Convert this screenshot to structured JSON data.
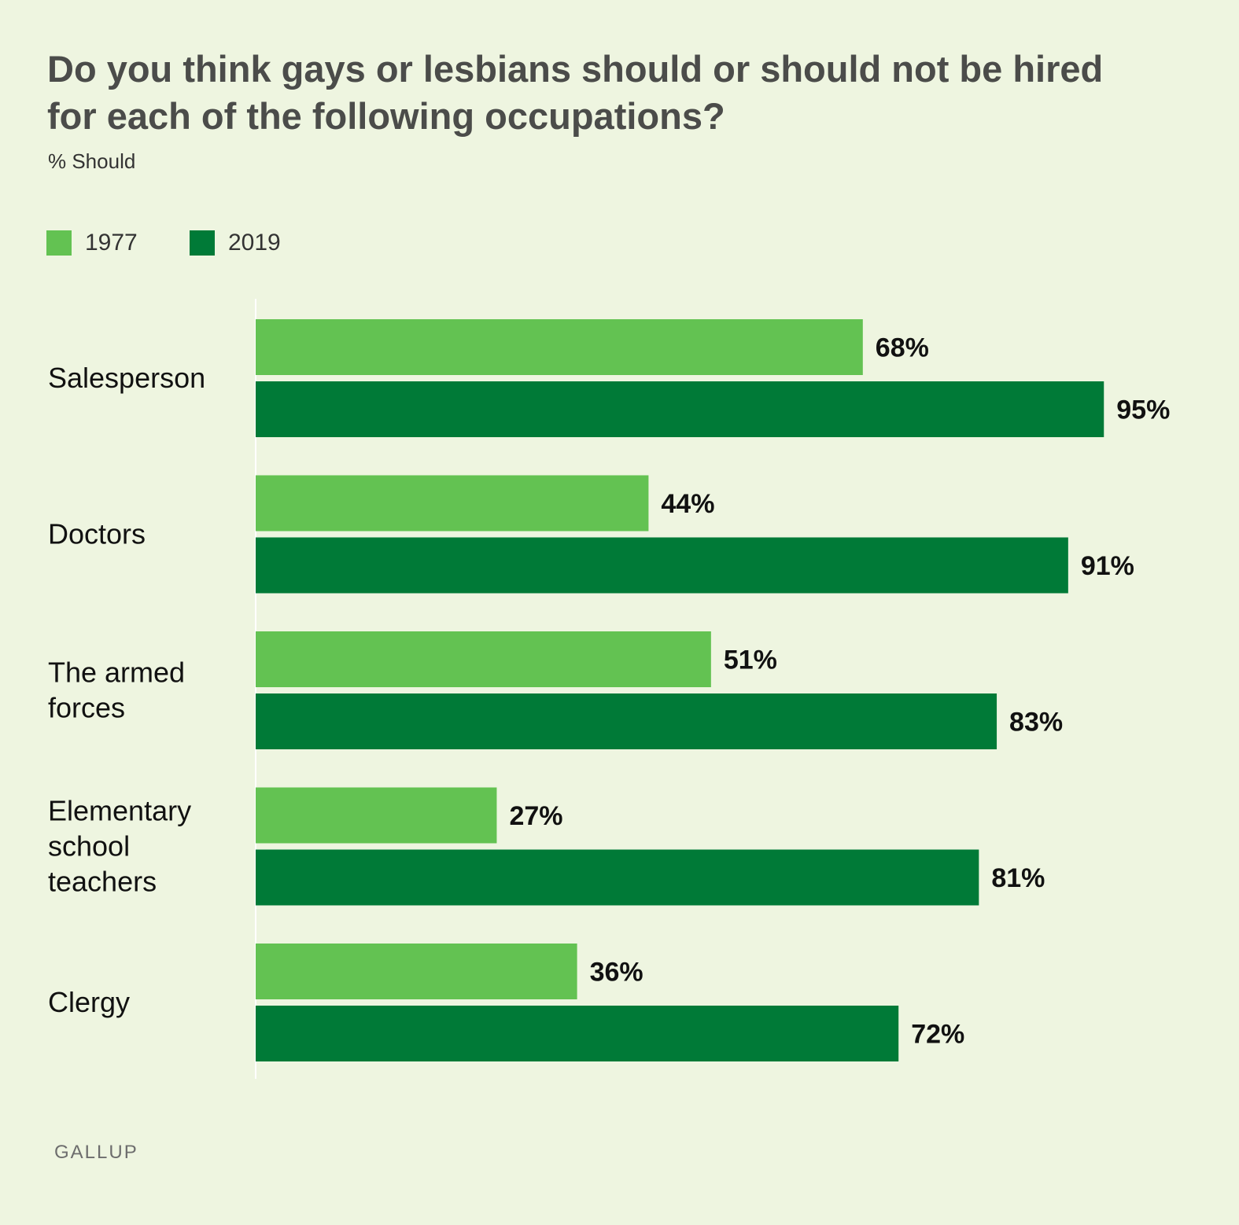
{
  "title": "Do you think gays or lesbians should or should not be hired for each of the following occupations?",
  "subtitle": "% Should",
  "colors": {
    "y1977": "#63c252",
    "y2019": "#007a37",
    "background": "#eef5e0"
  },
  "legend": [
    {
      "label": "1977",
      "color": "#63c252"
    },
    {
      "label": "2019",
      "color": "#007a37"
    }
  ],
  "footer": "GALLUP",
  "chart_data": {
    "type": "bar",
    "orientation": "horizontal",
    "title": "Do you think gays or lesbians should or should not be hired for each of the following occupations?",
    "subtitle": "% Should",
    "categories": [
      [
        "Salesperson"
      ],
      [
        "Doctors"
      ],
      [
        "The armed",
        "forces"
      ],
      [
        "Elementary",
        "school",
        "teachers"
      ],
      [
        "Clergy"
      ]
    ],
    "series": [
      {
        "name": "1977",
        "color": "#63c252",
        "values": [
          68,
          44,
          51,
          27,
          36
        ],
        "labels": [
          "68%",
          "44%",
          "51%",
          "27%",
          "36%"
        ]
      },
      {
        "name": "2019",
        "color": "#007a37",
        "values": [
          95,
          91,
          83,
          81,
          72
        ],
        "labels": [
          "95%",
          "91%",
          "83%",
          "81%",
          "72%"
        ]
      }
    ],
    "xlim": [
      0,
      100
    ],
    "grid": false,
    "legend_position": "top-left"
  }
}
